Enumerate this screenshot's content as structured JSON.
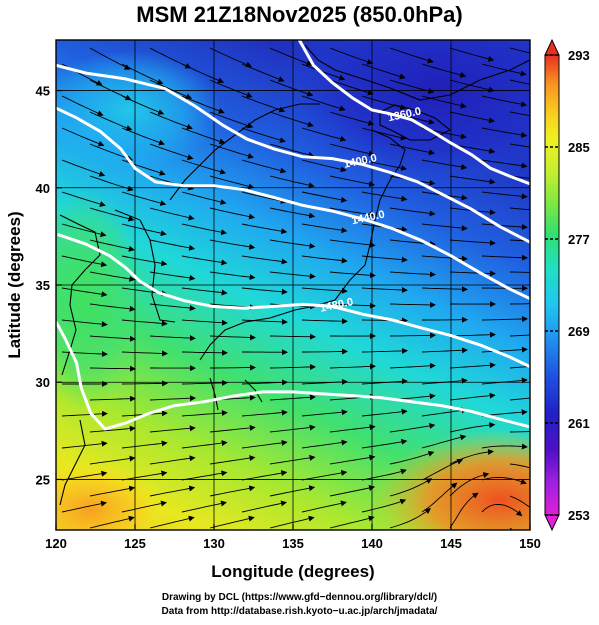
{
  "title": "MSM 21Z18Nov2025 (850.0hPa)",
  "credits": [
    "Drawing by DCL (https://www.gfd−dennou.org/library/dcl/)",
    "Data from http://database.rish.kyoto−u.ac.jp/arch/jmadata/"
  ],
  "map": {
    "x_axis_label": "Longitude (degrees)",
    "y_axis_label": "Latitude  (degrees)",
    "lon_range": [
      120,
      150
    ],
    "lat_range": [
      22.4,
      47.6
    ],
    "lon_ticks": [
      "120",
      "125",
      "130",
      "135",
      "140",
      "145",
      "150"
    ],
    "lat_ticks": [
      "25",
      "30",
      "35",
      "40",
      "45"
    ],
    "grid": true,
    "fields": [
      "temperature shading (K)",
      "geopotential height contours (m)",
      "wind streamlines"
    ],
    "contours": [
      {
        "level": 1360.0,
        "label": "1360.0",
        "label_lonlat": [
          142.1,
          43.6
        ],
        "points": [
          [
            135.4,
            47.6
          ],
          [
            136.3,
            46.3
          ],
          [
            137.5,
            45.4
          ],
          [
            138.8,
            44.6
          ],
          [
            140.0,
            44.0
          ],
          [
            141.2,
            43.8
          ],
          [
            142.5,
            43.5
          ],
          [
            143.8,
            42.9
          ],
          [
            145.0,
            42.3
          ],
          [
            146.3,
            41.7
          ],
          [
            147.5,
            41.0
          ],
          [
            148.7,
            40.6
          ],
          [
            150.0,
            40.2
          ]
        ]
      },
      {
        "level": 1400.0,
        "label": "1400.0",
        "label_lonlat": [
          139.3,
          41.2
        ],
        "points": [
          [
            120.0,
            46.3
          ],
          [
            121.9,
            45.9
          ],
          [
            124.4,
            45.6
          ],
          [
            126.9,
            45.1
          ],
          [
            128.8,
            44.2
          ],
          [
            130.6,
            43.2
          ],
          [
            132.1,
            42.5
          ],
          [
            133.8,
            42.0
          ],
          [
            135.6,
            41.6
          ],
          [
            137.5,
            41.5
          ],
          [
            139.4,
            41.2
          ],
          [
            141.1,
            40.8
          ],
          [
            142.9,
            40.3
          ],
          [
            144.6,
            39.6
          ],
          [
            146.3,
            38.9
          ],
          [
            148.1,
            38.0
          ],
          [
            150.0,
            37.2
          ]
        ]
      },
      {
        "level": 1440.0,
        "label": "1440.0",
        "label_lonlat": [
          139.8,
          38.3
        ],
        "points": [
          [
            120.0,
            44.1
          ],
          [
            121.3,
            43.6
          ],
          [
            122.8,
            42.9
          ],
          [
            124.1,
            42.0
          ],
          [
            125.0,
            41.0
          ],
          [
            126.3,
            40.3
          ],
          [
            128.1,
            40.1
          ],
          [
            130.0,
            40.1
          ],
          [
            131.9,
            39.9
          ],
          [
            133.8,
            39.5
          ],
          [
            135.6,
            39.1
          ],
          [
            137.5,
            38.8
          ],
          [
            139.4,
            38.4
          ],
          [
            141.3,
            37.9
          ],
          [
            143.1,
            37.3
          ],
          [
            145.0,
            36.5
          ],
          [
            146.9,
            35.6
          ],
          [
            148.7,
            34.8
          ],
          [
            150.0,
            34.3
          ]
        ]
      },
      {
        "level": 1480.0,
        "label": "1480.0",
        "label_lonlat": [
          137.8,
          33.8
        ],
        "points": [
          [
            120.1,
            37.6
          ],
          [
            121.9,
            37.1
          ],
          [
            123.4,
            36.5
          ],
          [
            124.4,
            35.9
          ],
          [
            125.3,
            35.2
          ],
          [
            126.5,
            34.6
          ],
          [
            128.1,
            34.2
          ],
          [
            129.9,
            33.9
          ],
          [
            131.9,
            33.8
          ],
          [
            133.8,
            33.9
          ],
          [
            135.6,
            34.0
          ],
          [
            137.5,
            33.9
          ],
          [
            139.4,
            33.5
          ],
          [
            141.3,
            33.2
          ],
          [
            143.1,
            32.8
          ],
          [
            145.0,
            32.4
          ],
          [
            146.9,
            31.9
          ],
          [
            148.7,
            31.3
          ],
          [
            150.0,
            30.8
          ]
        ]
      },
      {
        "level": 1520.0,
        "label": "",
        "label_lonlat": null,
        "points": [
          [
            120.0,
            33.1
          ],
          [
            120.6,
            32.2
          ],
          [
            121.3,
            31.0
          ],
          [
            121.6,
            29.7
          ],
          [
            122.2,
            28.4
          ],
          [
            123.1,
            27.6
          ],
          [
            124.4,
            27.9
          ],
          [
            125.9,
            28.4
          ],
          [
            127.5,
            28.8
          ],
          [
            129.4,
            29.0
          ],
          [
            131.3,
            29.3
          ],
          [
            133.1,
            29.5
          ],
          [
            135.0,
            29.5
          ],
          [
            136.9,
            29.4
          ],
          [
            138.8,
            29.3
          ],
          [
            140.6,
            29.2
          ],
          [
            142.5,
            29.0
          ],
          [
            144.4,
            28.8
          ],
          [
            146.3,
            28.5
          ],
          [
            148.1,
            28.1
          ],
          [
            150.0,
            27.7
          ]
        ]
      }
    ]
  },
  "colorbar": {
    "ticks": [
      "293",
      "285",
      "277",
      "269",
      "261",
      "253"
    ],
    "min": 253,
    "max": 293,
    "colors": [
      "#e020d8",
      "#a020e0",
      "#5010c8",
      "#2020c8",
      "#2048e0",
      "#2090f0",
      "#20c8f0",
      "#20e0c8",
      "#30e070",
      "#80e840",
      "#c8f030",
      "#f0f020",
      "#f8c820",
      "#f89020",
      "#f05020",
      "#e82020"
    ]
  },
  "colors": {
    "contour": "#ffffff",
    "streamline": "#000000",
    "coastline": "#000000"
  }
}
